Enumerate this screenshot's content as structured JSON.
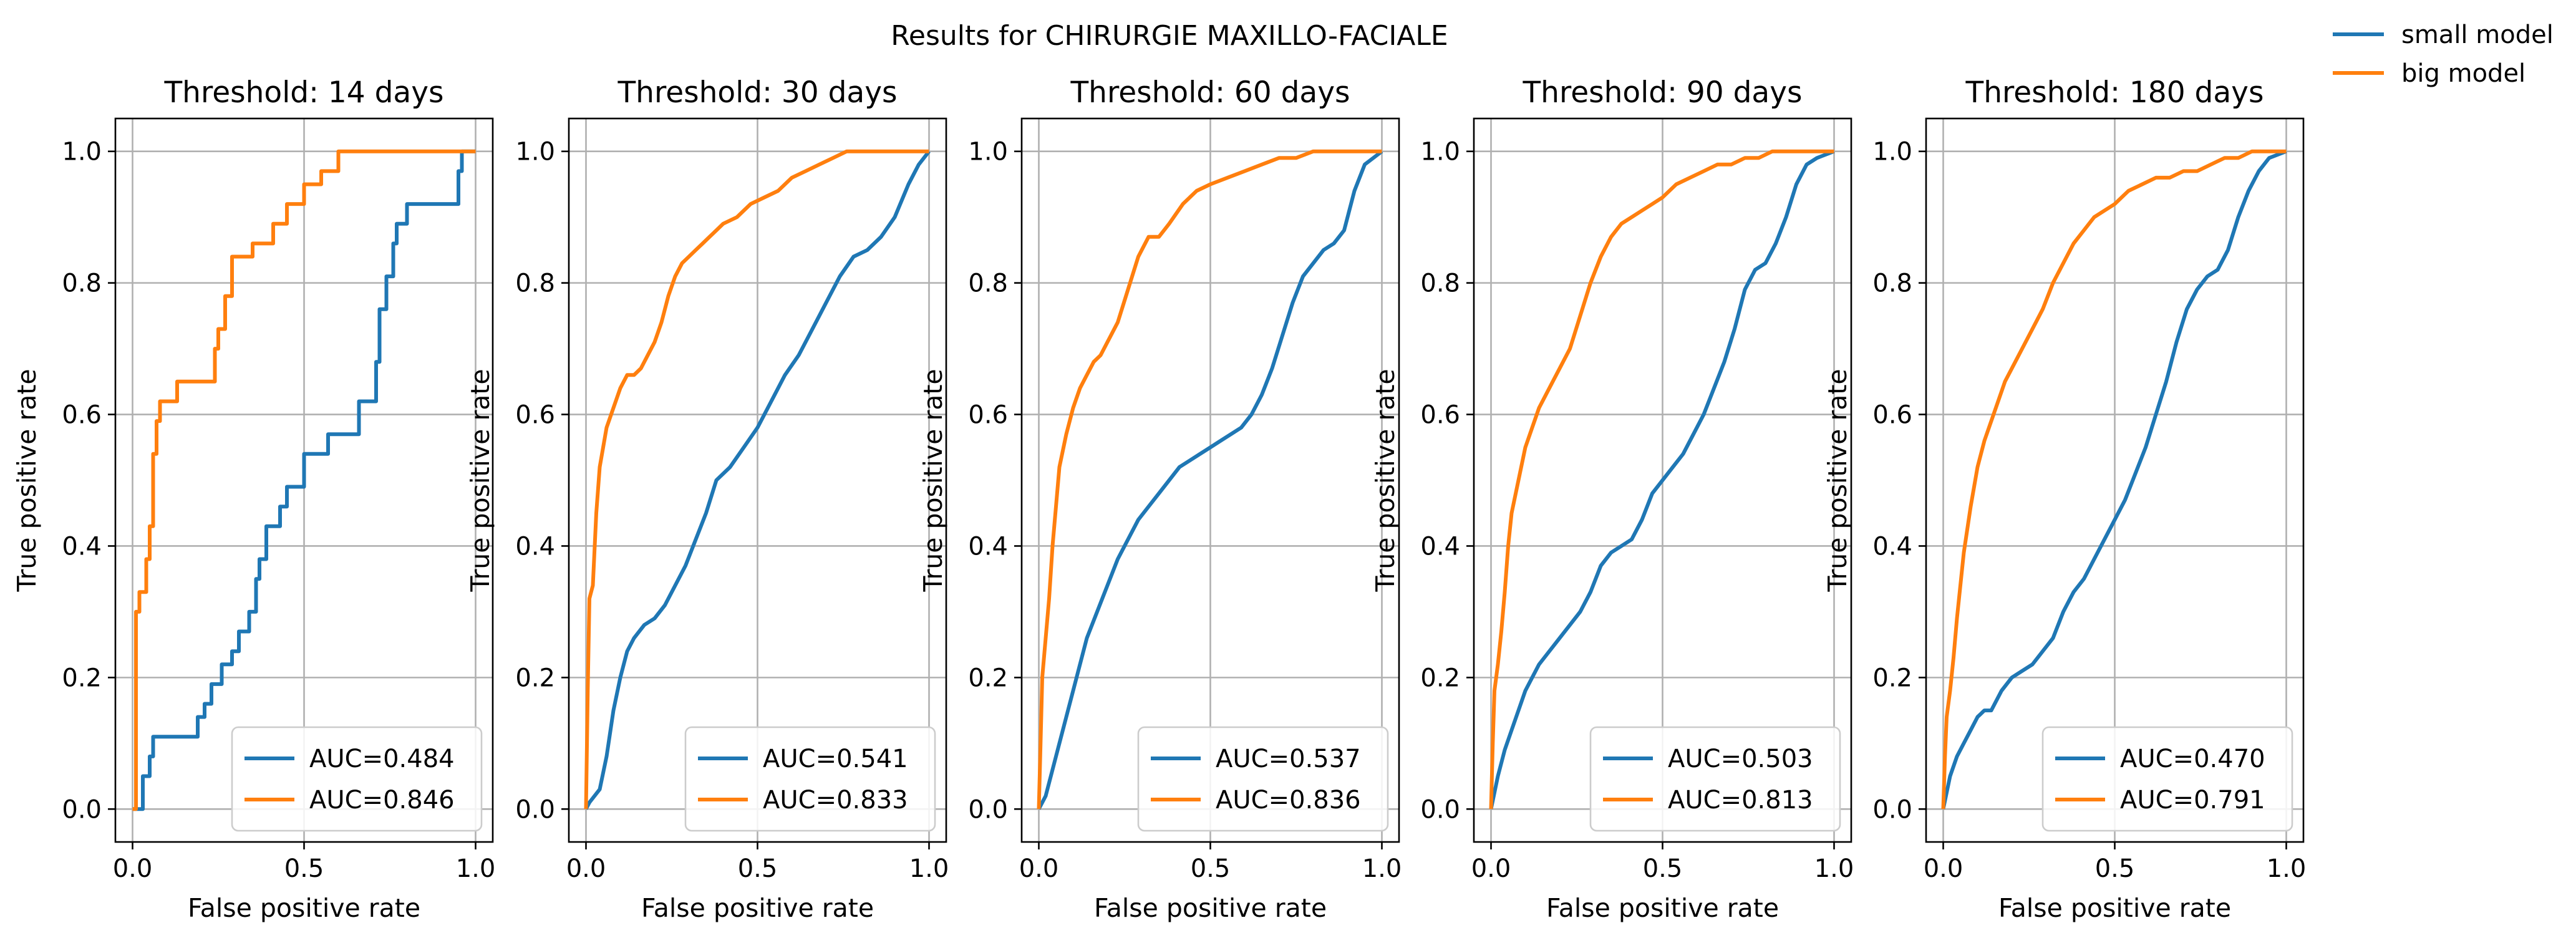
{
  "figure": {
    "title": "Results for CHIRURGIE MAXILLO-FACIALE"
  },
  "legend": {
    "placement": "top-right",
    "items": [
      {
        "label": "small model",
        "color": "#1f77b4"
      },
      {
        "label": "big model",
        "color": "#ff7f0e"
      }
    ]
  },
  "chart_data": [
    {
      "type": "line",
      "title": "Threshold: 14 days",
      "xlabel": "False positive rate",
      "ylabel": "True positive rate",
      "xlim": [
        -0.05,
        1.05
      ],
      "ylim": [
        -0.05,
        1.05
      ],
      "xticks": [
        "0.0",
        "0.5",
        "1.0"
      ],
      "yticks": [
        "0.0",
        "0.2",
        "0.4",
        "0.6",
        "0.8",
        "1.0"
      ],
      "grid": true,
      "legend_placement": "lower-right",
      "series": [
        {
          "label": "AUC=0.484",
          "color": "#1f77b4",
          "step": true,
          "x": [
            0.0,
            0.03,
            0.03,
            0.05,
            0.05,
            0.06,
            0.06,
            0.19,
            0.19,
            0.21,
            0.21,
            0.23,
            0.23,
            0.26,
            0.26,
            0.29,
            0.29,
            0.31,
            0.31,
            0.34,
            0.34,
            0.36,
            0.36,
            0.37,
            0.37,
            0.39,
            0.39,
            0.43,
            0.43,
            0.45,
            0.45,
            0.5,
            0.5,
            0.57,
            0.57,
            0.66,
            0.66,
            0.71,
            0.71,
            0.72,
            0.72,
            0.74,
            0.74,
            0.76,
            0.76,
            0.77,
            0.77,
            0.8,
            0.8,
            0.95,
            0.95,
            0.96,
            0.96,
            1.0
          ],
          "y": [
            0.0,
            0.0,
            0.05,
            0.05,
            0.08,
            0.08,
            0.11,
            0.11,
            0.14,
            0.14,
            0.16,
            0.16,
            0.19,
            0.19,
            0.22,
            0.22,
            0.24,
            0.24,
            0.27,
            0.27,
            0.3,
            0.3,
            0.35,
            0.35,
            0.38,
            0.38,
            0.43,
            0.43,
            0.46,
            0.46,
            0.49,
            0.49,
            0.54,
            0.54,
            0.57,
            0.57,
            0.62,
            0.62,
            0.68,
            0.68,
            0.76,
            0.76,
            0.81,
            0.81,
            0.86,
            0.86,
            0.89,
            0.89,
            0.92,
            0.92,
            0.97,
            0.97,
            1.0,
            1.0
          ]
        },
        {
          "label": "AUC=0.846",
          "color": "#ff7f0e",
          "step": true,
          "x": [
            0.0,
            0.01,
            0.01,
            0.02,
            0.02,
            0.04,
            0.04,
            0.05,
            0.05,
            0.06,
            0.06,
            0.07,
            0.07,
            0.08,
            0.08,
            0.13,
            0.13,
            0.24,
            0.24,
            0.25,
            0.25,
            0.27,
            0.27,
            0.29,
            0.29,
            0.35,
            0.35,
            0.41,
            0.41,
            0.45,
            0.45,
            0.5,
            0.5,
            0.55,
            0.55,
            0.6,
            0.6,
            1.0
          ],
          "y": [
            0.0,
            0.0,
            0.3,
            0.3,
            0.33,
            0.33,
            0.38,
            0.38,
            0.43,
            0.43,
            0.54,
            0.54,
            0.59,
            0.59,
            0.62,
            0.62,
            0.65,
            0.65,
            0.7,
            0.7,
            0.73,
            0.73,
            0.78,
            0.78,
            0.84,
            0.84,
            0.86,
            0.86,
            0.89,
            0.89,
            0.92,
            0.92,
            0.95,
            0.95,
            0.97,
            0.97,
            1.0,
            1.0
          ]
        }
      ]
    },
    {
      "type": "line",
      "title": "Threshold: 30 days",
      "xlabel": "False positive rate",
      "ylabel": "True positive rate",
      "xlim": [
        -0.05,
        1.05
      ],
      "ylim": [
        -0.05,
        1.05
      ],
      "xticks": [
        "0.0",
        "0.5",
        "1.0"
      ],
      "yticks": [
        "0.0",
        "0.2",
        "0.4",
        "0.6",
        "0.8",
        "1.0"
      ],
      "grid": true,
      "legend_placement": "lower-right",
      "series": [
        {
          "label": "AUC=0.541",
          "color": "#1f77b4",
          "step": false,
          "x": [
            0.0,
            0.01,
            0.04,
            0.06,
            0.08,
            0.1,
            0.12,
            0.14,
            0.17,
            0.2,
            0.23,
            0.26,
            0.29,
            0.32,
            0.35,
            0.38,
            0.42,
            0.46,
            0.5,
            0.54,
            0.58,
            0.62,
            0.66,
            0.7,
            0.74,
            0.78,
            0.82,
            0.86,
            0.9,
            0.94,
            0.97,
            1.0
          ],
          "y": [
            0.0,
            0.01,
            0.03,
            0.08,
            0.15,
            0.2,
            0.24,
            0.26,
            0.28,
            0.29,
            0.31,
            0.34,
            0.37,
            0.41,
            0.45,
            0.5,
            0.52,
            0.55,
            0.58,
            0.62,
            0.66,
            0.69,
            0.73,
            0.77,
            0.81,
            0.84,
            0.85,
            0.87,
            0.9,
            0.95,
            0.98,
            1.0
          ]
        },
        {
          "label": "AUC=0.833",
          "color": "#ff7f0e",
          "step": false,
          "x": [
            0.0,
            0.005,
            0.01,
            0.02,
            0.03,
            0.04,
            0.05,
            0.06,
            0.08,
            0.1,
            0.12,
            0.14,
            0.16,
            0.18,
            0.2,
            0.22,
            0.24,
            0.26,
            0.28,
            0.3,
            0.32,
            0.34,
            0.36,
            0.38,
            0.4,
            0.44,
            0.48,
            0.52,
            0.56,
            0.6,
            0.64,
            0.68,
            0.72,
            0.76,
            0.8,
            0.85,
            0.9,
            1.0
          ],
          "y": [
            0.0,
            0.18,
            0.32,
            0.34,
            0.45,
            0.52,
            0.55,
            0.58,
            0.61,
            0.64,
            0.66,
            0.66,
            0.67,
            0.69,
            0.71,
            0.74,
            0.78,
            0.81,
            0.83,
            0.84,
            0.85,
            0.86,
            0.87,
            0.88,
            0.89,
            0.9,
            0.92,
            0.93,
            0.94,
            0.96,
            0.97,
            0.98,
            0.99,
            1.0,
            1.0,
            1.0,
            1.0,
            1.0
          ]
        }
      ]
    },
    {
      "type": "line",
      "title": "Threshold: 60 days",
      "xlabel": "False positive rate",
      "ylabel": "True positive rate",
      "xlim": [
        -0.05,
        1.05
      ],
      "ylim": [
        -0.05,
        1.05
      ],
      "xticks": [
        "0.0",
        "0.5",
        "1.0"
      ],
      "yticks": [
        "0.0",
        "0.2",
        "0.4",
        "0.6",
        "0.8",
        "1.0"
      ],
      "grid": true,
      "legend_placement": "lower-right",
      "series": [
        {
          "label": "AUC=0.537",
          "color": "#1f77b4",
          "step": false,
          "x": [
            0.0,
            0.02,
            0.04,
            0.06,
            0.08,
            0.1,
            0.12,
            0.14,
            0.17,
            0.2,
            0.23,
            0.26,
            0.29,
            0.32,
            0.35,
            0.38,
            0.41,
            0.44,
            0.47,
            0.5,
            0.53,
            0.56,
            0.59,
            0.62,
            0.65,
            0.68,
            0.71,
            0.74,
            0.77,
            0.8,
            0.83,
            0.86,
            0.89,
            0.92,
            0.95,
            1.0
          ],
          "y": [
            0.0,
            0.02,
            0.06,
            0.1,
            0.14,
            0.18,
            0.22,
            0.26,
            0.3,
            0.34,
            0.38,
            0.41,
            0.44,
            0.46,
            0.48,
            0.5,
            0.52,
            0.53,
            0.54,
            0.55,
            0.56,
            0.57,
            0.58,
            0.6,
            0.63,
            0.67,
            0.72,
            0.77,
            0.81,
            0.83,
            0.85,
            0.86,
            0.88,
            0.94,
            0.98,
            1.0
          ]
        },
        {
          "label": "AUC=0.836",
          "color": "#ff7f0e",
          "step": false,
          "x": [
            0.0,
            0.005,
            0.01,
            0.02,
            0.03,
            0.04,
            0.05,
            0.06,
            0.08,
            0.1,
            0.12,
            0.14,
            0.16,
            0.18,
            0.2,
            0.23,
            0.26,
            0.29,
            0.32,
            0.35,
            0.38,
            0.42,
            0.46,
            0.5,
            0.55,
            0.6,
            0.65,
            0.7,
            0.75,
            0.8,
            0.85,
            0.9,
            0.95,
            1.0
          ],
          "y": [
            0.0,
            0.1,
            0.2,
            0.26,
            0.32,
            0.4,
            0.46,
            0.52,
            0.57,
            0.61,
            0.64,
            0.66,
            0.68,
            0.69,
            0.71,
            0.74,
            0.79,
            0.84,
            0.87,
            0.87,
            0.89,
            0.92,
            0.94,
            0.95,
            0.96,
            0.97,
            0.98,
            0.99,
            0.99,
            1.0,
            1.0,
            1.0,
            1.0,
            1.0
          ]
        }
      ]
    },
    {
      "type": "line",
      "title": "Threshold: 90 days",
      "xlabel": "False positive rate",
      "ylabel": "True positive rate",
      "xlim": [
        -0.05,
        1.05
      ],
      "ylim": [
        -0.05,
        1.05
      ],
      "xticks": [
        "0.0",
        "0.5",
        "1.0"
      ],
      "yticks": [
        "0.0",
        "0.2",
        "0.4",
        "0.6",
        "0.8",
        "1.0"
      ],
      "grid": true,
      "legend_placement": "lower-right",
      "series": [
        {
          "label": "AUC=0.503",
          "color": "#1f77b4",
          "step": false,
          "x": [
            0.0,
            0.02,
            0.04,
            0.06,
            0.08,
            0.1,
            0.12,
            0.14,
            0.17,
            0.2,
            0.23,
            0.26,
            0.29,
            0.32,
            0.35,
            0.38,
            0.41,
            0.44,
            0.47,
            0.5,
            0.53,
            0.56,
            0.59,
            0.62,
            0.65,
            0.68,
            0.71,
            0.74,
            0.77,
            0.8,
            0.83,
            0.86,
            0.89,
            0.92,
            0.95,
            1.0
          ],
          "y": [
            0.0,
            0.05,
            0.09,
            0.12,
            0.15,
            0.18,
            0.2,
            0.22,
            0.24,
            0.26,
            0.28,
            0.3,
            0.33,
            0.37,
            0.39,
            0.4,
            0.41,
            0.44,
            0.48,
            0.5,
            0.52,
            0.54,
            0.57,
            0.6,
            0.64,
            0.68,
            0.73,
            0.79,
            0.82,
            0.83,
            0.86,
            0.9,
            0.95,
            0.98,
            0.99,
            1.0
          ]
        },
        {
          "label": "AUC=0.813",
          "color": "#ff7f0e",
          "step": false,
          "x": [
            0.0,
            0.005,
            0.01,
            0.02,
            0.03,
            0.04,
            0.05,
            0.06,
            0.08,
            0.1,
            0.12,
            0.14,
            0.16,
            0.18,
            0.2,
            0.23,
            0.26,
            0.29,
            0.32,
            0.35,
            0.38,
            0.41,
            0.44,
            0.47,
            0.5,
            0.54,
            0.58,
            0.62,
            0.66,
            0.7,
            0.74,
            0.78,
            0.82,
            0.86,
            0.9,
            0.94,
            1.0
          ],
          "y": [
            0.0,
            0.1,
            0.18,
            0.22,
            0.27,
            0.33,
            0.4,
            0.45,
            0.5,
            0.55,
            0.58,
            0.61,
            0.63,
            0.65,
            0.67,
            0.7,
            0.75,
            0.8,
            0.84,
            0.87,
            0.89,
            0.9,
            0.91,
            0.92,
            0.93,
            0.95,
            0.96,
            0.97,
            0.98,
            0.98,
            0.99,
            0.99,
            1.0,
            1.0,
            1.0,
            1.0,
            1.0
          ]
        }
      ]
    },
    {
      "type": "line",
      "title": "Threshold: 180 days",
      "xlabel": "False positive rate",
      "ylabel": "True positive rate",
      "xlim": [
        -0.05,
        1.05
      ],
      "ylim": [
        -0.05,
        1.05
      ],
      "xticks": [
        "0.0",
        "0.5",
        "1.0"
      ],
      "yticks": [
        "0.0",
        "0.2",
        "0.4",
        "0.6",
        "0.8",
        "1.0"
      ],
      "grid": true,
      "legend_placement": "lower-right",
      "series": [
        {
          "label": "AUC=0.470",
          "color": "#1f77b4",
          "step": false,
          "x": [
            0.0,
            0.02,
            0.04,
            0.06,
            0.08,
            0.1,
            0.12,
            0.14,
            0.17,
            0.2,
            0.23,
            0.26,
            0.29,
            0.32,
            0.35,
            0.38,
            0.41,
            0.44,
            0.47,
            0.5,
            0.53,
            0.56,
            0.59,
            0.62,
            0.65,
            0.68,
            0.71,
            0.74,
            0.77,
            0.8,
            0.83,
            0.86,
            0.89,
            0.92,
            0.95,
            1.0
          ],
          "y": [
            0.0,
            0.05,
            0.08,
            0.1,
            0.12,
            0.14,
            0.15,
            0.15,
            0.18,
            0.2,
            0.21,
            0.22,
            0.24,
            0.26,
            0.3,
            0.33,
            0.35,
            0.38,
            0.41,
            0.44,
            0.47,
            0.51,
            0.55,
            0.6,
            0.65,
            0.71,
            0.76,
            0.79,
            0.81,
            0.82,
            0.85,
            0.9,
            0.94,
            0.97,
            0.99,
            1.0
          ]
        },
        {
          "label": "AUC=0.791",
          "color": "#ff7f0e",
          "step": false,
          "x": [
            0.0,
            0.005,
            0.01,
            0.02,
            0.03,
            0.04,
            0.05,
            0.06,
            0.08,
            0.1,
            0.12,
            0.14,
            0.16,
            0.18,
            0.2,
            0.23,
            0.26,
            0.29,
            0.32,
            0.35,
            0.38,
            0.41,
            0.44,
            0.47,
            0.5,
            0.54,
            0.58,
            0.62,
            0.66,
            0.7,
            0.74,
            0.78,
            0.82,
            0.86,
            0.9,
            0.94,
            1.0
          ],
          "y": [
            0.0,
            0.08,
            0.14,
            0.18,
            0.23,
            0.29,
            0.34,
            0.39,
            0.46,
            0.52,
            0.56,
            0.59,
            0.62,
            0.65,
            0.67,
            0.7,
            0.73,
            0.76,
            0.8,
            0.83,
            0.86,
            0.88,
            0.9,
            0.91,
            0.92,
            0.94,
            0.95,
            0.96,
            0.96,
            0.97,
            0.97,
            0.98,
            0.99,
            0.99,
            1.0,
            1.0,
            1.0
          ]
        }
      ]
    }
  ]
}
